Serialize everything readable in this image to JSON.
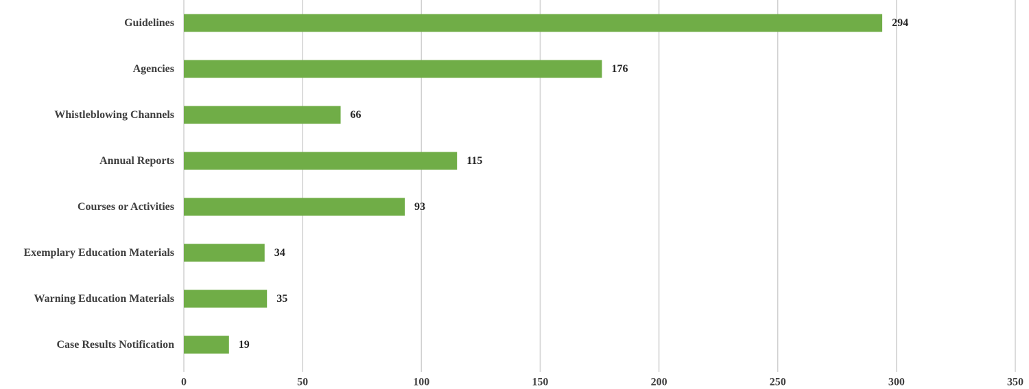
{
  "chart_data": {
    "type": "bar",
    "orientation": "horizontal",
    "categories": [
      "Guidelines",
      "Agencies",
      "Whistleblowing Channels",
      "Annual Reports",
      "Courses or Activities",
      "Exemplary Education Materials",
      "Warning Education Materials",
      "Case Results Notification"
    ],
    "values": [
      294,
      176,
      66,
      115,
      93,
      34,
      35,
      19
    ],
    "color": "#70ad47",
    "xlim": [
      0,
      350
    ],
    "xticks": [
      0,
      50,
      100,
      150,
      200,
      250,
      300,
      350
    ],
    "grid": true
  }
}
